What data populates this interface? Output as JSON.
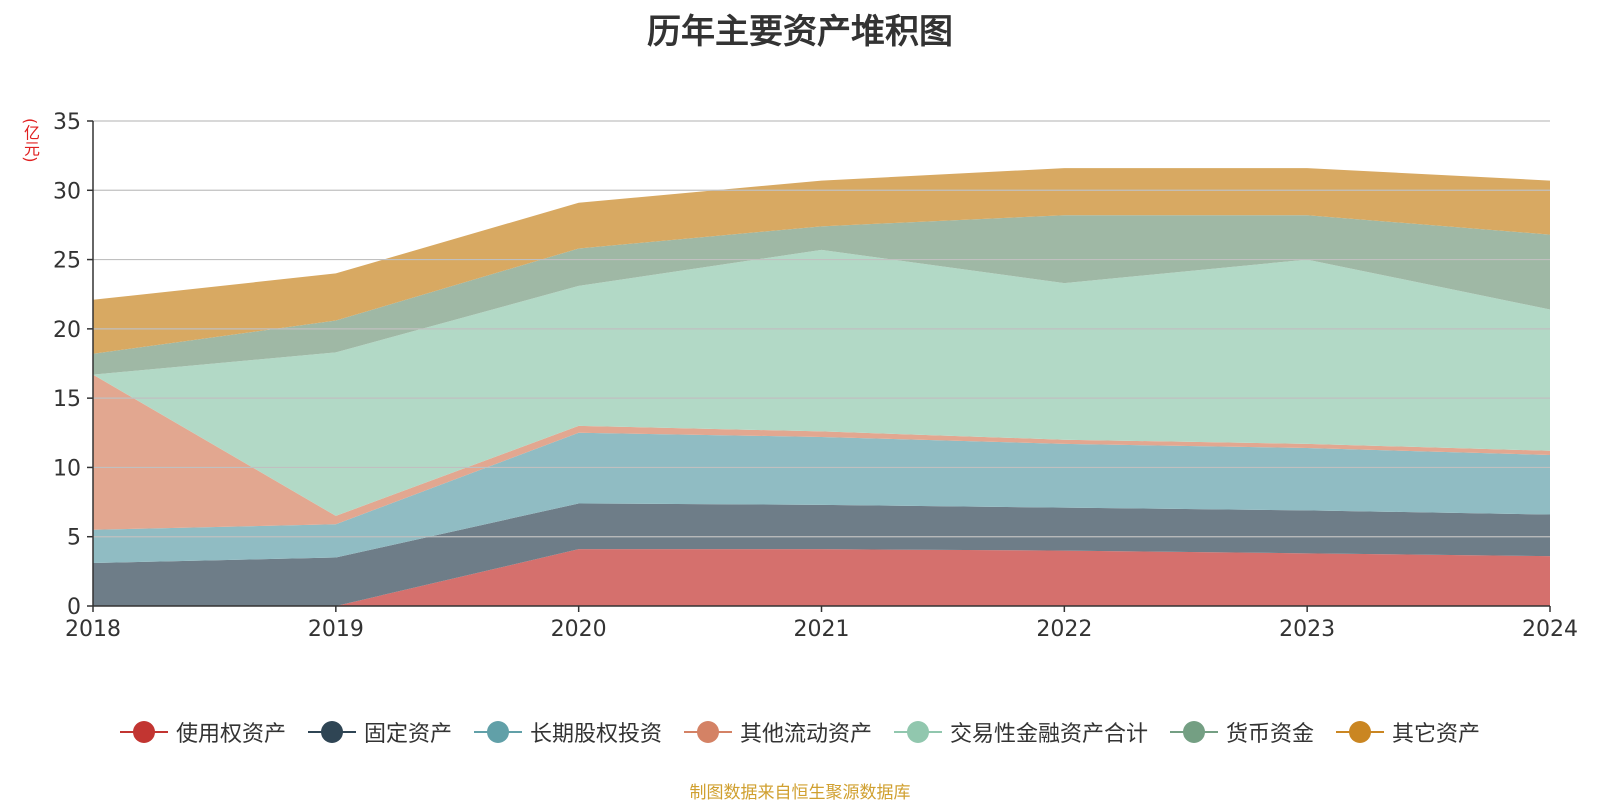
{
  "chart_data": {
    "type": "area",
    "stacked": true,
    "title": "历年主要资产堆积图",
    "ylabel": "(亿元)",
    "xlabel": "",
    "x": [
      "2018",
      "2019",
      "2020",
      "2021",
      "2022",
      "2023",
      "2024"
    ],
    "ylim": [
      0,
      35
    ],
    "yticks": [
      0,
      5,
      10,
      15,
      20,
      25,
      30,
      35
    ],
    "grid": true,
    "legend_position": "bottom",
    "series": [
      {
        "name": "使用权资产",
        "color": "#d5706d",
        "legend_color": "#c23531",
        "values": [
          0,
          0,
          4.1,
          4.1,
          4.0,
          3.8,
          3.6
        ]
      },
      {
        "name": "固定资产",
        "color": "#6e7d88",
        "legend_color": "#2f4554",
        "values": [
          3.1,
          3.5,
          3.3,
          3.2,
          3.1,
          3.1,
          3.0
        ]
      },
      {
        "name": "长期股权投资",
        "color": "#90bcc3",
        "legend_color": "#61a0a8",
        "values": [
          2.4,
          2.4,
          5.1,
          4.9,
          4.6,
          4.5,
          4.3
        ]
      },
      {
        "name": "其他流动资产",
        "color": "#e2a790",
        "legend_color": "#d48265",
        "values": [
          11.2,
          0.6,
          0.5,
          0.4,
          0.3,
          0.3,
          0.3
        ]
      },
      {
        "name": "交易性金融资产合计",
        "color": "#b2d9c6",
        "legend_color": "#91c7ae",
        "values": [
          0,
          11.8,
          10.1,
          13.1,
          11.3,
          13.3,
          10.2
        ]
      },
      {
        "name": "货币资金",
        "color": "#9fb8a5",
        "legend_color": "#749f83",
        "values": [
          1.5,
          2.3,
          2.7,
          1.7,
          4.9,
          3.2,
          5.4
        ]
      },
      {
        "name": "其它资产",
        "color": "#d8a962",
        "legend_color": "#ca8622",
        "values": [
          3.9,
          3.4,
          3.3,
          3.3,
          3.4,
          3.4,
          3.9
        ]
      }
    ]
  },
  "source_text": "制图数据来自恒生聚源数据库"
}
